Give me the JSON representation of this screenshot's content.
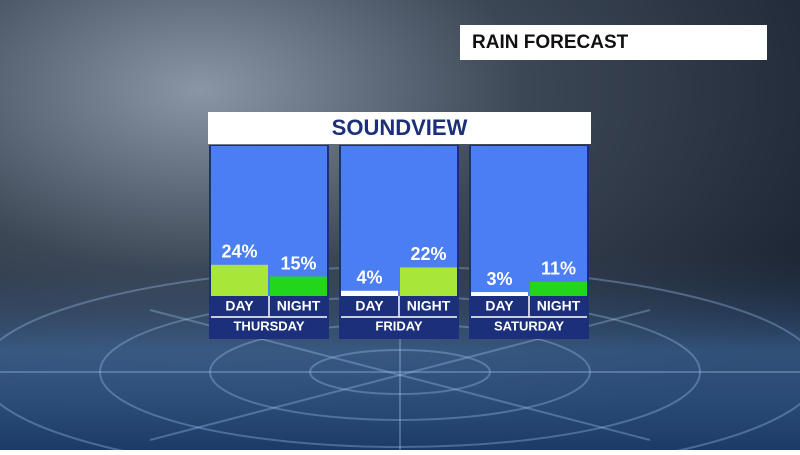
{
  "chart_data": {
    "type": "bar",
    "title": "RAIN FORECAST",
    "subtitle": "SOUNDVIEW",
    "categories": [
      "THURSDAY",
      "FRIDAY",
      "SATURDAY"
    ],
    "series": [
      {
        "name": "DAY",
        "values": [
          24,
          4,
          3
        ],
        "value_labels": [
          "24%",
          "4%",
          "3%"
        ],
        "colors": [
          "#a8e63a",
          "#ffffff",
          "#ffffff"
        ]
      },
      {
        "name": "NIGHT",
        "values": [
          15,
          22,
          11
        ],
        "value_labels": [
          "15%",
          "22%",
          "11%"
        ],
        "colors": [
          "#22d61c",
          "#a8e63a",
          "#22d61c"
        ]
      }
    ]
  }
}
